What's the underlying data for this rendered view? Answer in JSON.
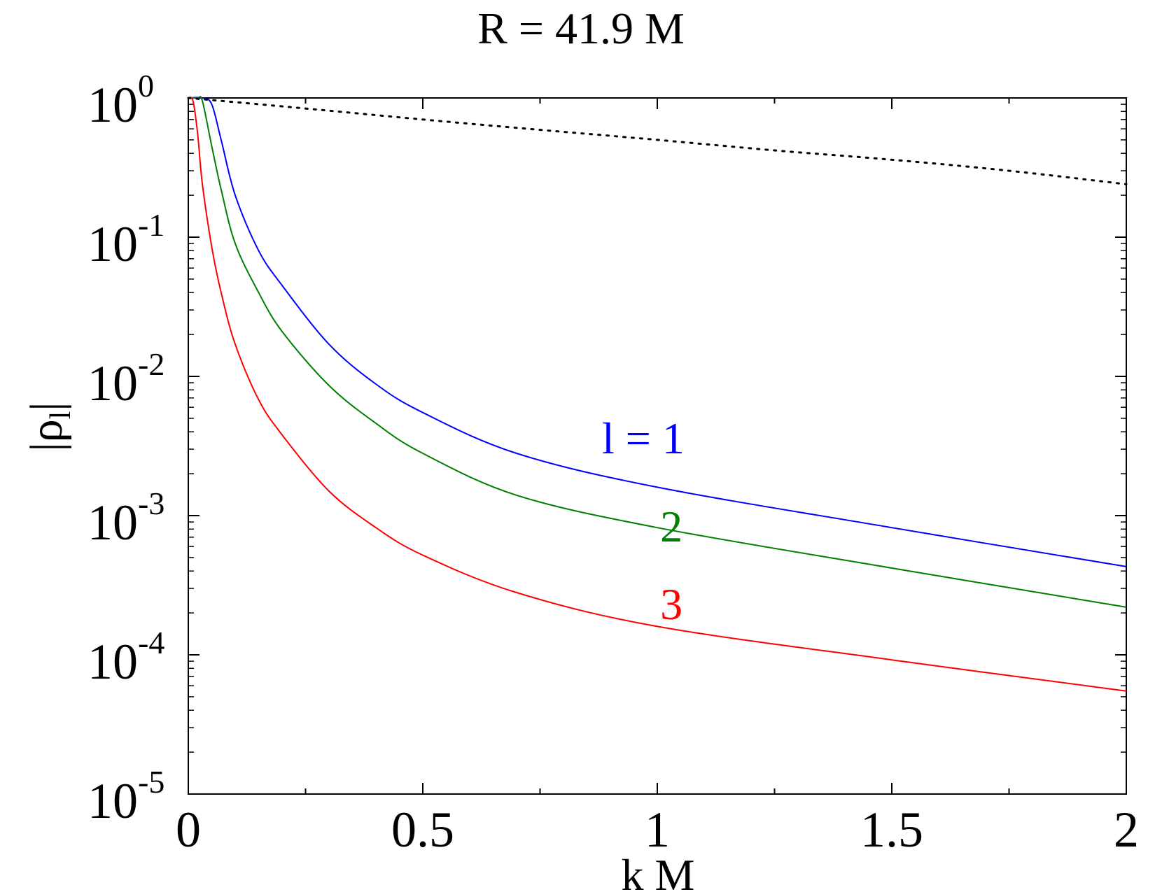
{
  "chart_data": {
    "type": "line",
    "title": "R = 41.9 M",
    "xlabel": "k M",
    "ylabel_main": "|ρ",
    "ylabel_sub": "l",
    "ylabel_close": "|",
    "xlim": [
      0,
      2
    ],
    "ylim_exp": [
      -5,
      0
    ],
    "yscale": "log",
    "x_ticks": [
      "0",
      "0.5",
      "1",
      "1.5",
      "2"
    ],
    "y_ticks": [
      {
        "base": "10",
        "exp": "0"
      },
      {
        "base": "10",
        "exp": "-1"
      },
      {
        "base": "10",
        "exp": "-2"
      },
      {
        "base": "10",
        "exp": "-3"
      },
      {
        "base": "10",
        "exp": "-4"
      },
      {
        "base": "10",
        "exp": "-5"
      }
    ],
    "grid": false,
    "series": [
      {
        "color": "#0000ff",
        "style": "solid",
        "x": [
          0,
          0.03,
          0.05,
          0.07,
          0.1,
          0.15,
          0.2,
          0.3,
          0.4,
          0.5,
          0.7,
          1.0,
          1.5,
          2.0
        ],
        "y": [
          1,
          1,
          0.9,
          0.5,
          0.2,
          0.08,
          0.045,
          0.017,
          0.0088,
          0.0055,
          0.0028,
          0.0016,
          0.00082,
          0.00043
        ]
      },
      {
        "color": "#008000",
        "style": "solid",
        "x": [
          0,
          0.02,
          0.03,
          0.05,
          0.07,
          0.1,
          0.15,
          0.2,
          0.3,
          0.4,
          0.5,
          0.7,
          1.0,
          1.5,
          2.0
        ],
        "y": [
          1,
          1,
          0.95,
          0.45,
          0.22,
          0.09,
          0.04,
          0.021,
          0.0086,
          0.0046,
          0.0028,
          0.0014,
          0.00082,
          0.00042,
          0.00022
        ]
      },
      {
        "color": "#ff0000",
        "style": "solid",
        "x": [
          0,
          0.01,
          0.02,
          0.03,
          0.05,
          0.07,
          0.1,
          0.15,
          0.2,
          0.3,
          0.4,
          0.5,
          0.7,
          1.0,
          1.5,
          2.0
        ],
        "y": [
          1,
          0.95,
          0.55,
          0.24,
          0.085,
          0.04,
          0.017,
          0.0068,
          0.0038,
          0.0015,
          0.00082,
          0.00052,
          0.00028,
          0.00016,
          9.2e-05,
          5.5e-05
        ]
      },
      {
        "color": "#000000",
        "style": "dotted",
        "x": [
          0,
          0.25,
          0.5,
          0.75,
          1.0,
          1.25,
          1.5,
          1.75,
          2.0
        ],
        "y": [
          1,
          0.84,
          0.7,
          0.59,
          0.5,
          0.42,
          0.36,
          0.3,
          0.24
        ]
      }
    ],
    "annotations": [
      {
        "text": "l = 1",
        "x": 0.97,
        "y": 0.0028,
        "color": "#0000ff"
      },
      {
        "text": "2",
        "x": 1.03,
        "y": 0.00065,
        "color": "#008000"
      },
      {
        "text": "3",
        "x": 1.03,
        "y": 0.00018,
        "color": "#ff0000"
      }
    ]
  }
}
